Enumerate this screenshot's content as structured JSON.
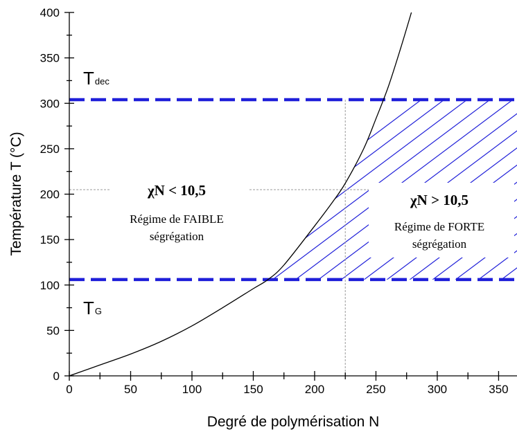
{
  "chart_data": {
    "type": "line",
    "title": "",
    "xlabel": "Degré de polymérisation N",
    "ylabel": "Température T (°C)",
    "xlim": [
      0,
      365
    ],
    "ylim": [
      0,
      400
    ],
    "x_ticks": [
      "0",
      "50",
      "100",
      "150",
      "200",
      "250",
      "300",
      "350"
    ],
    "y_ticks": [
      "0",
      "50",
      "100",
      "150",
      "200",
      "250",
      "300",
      "350",
      "400"
    ],
    "curve": {
      "x": [
        0,
        25,
        50,
        75,
        100,
        125,
        150,
        162,
        175,
        200,
        215,
        225,
        240,
        250,
        260,
        270,
        280
      ],
      "y": [
        0,
        12,
        24,
        38,
        55,
        75,
        96,
        106,
        122,
        165,
        192,
        212,
        250,
        283,
        318,
        360,
        405
      ]
    },
    "hlines": [
      {
        "label": "T_dec",
        "y": 304,
        "color": "#1f1fd9"
      },
      {
        "label": "T_G",
        "y": 106,
        "color": "#1f1fd9"
      }
    ],
    "reference_lines": {
      "x": 225,
      "y": 205
    },
    "annotations": {
      "tdec_main": "T",
      "tdec_sub": "dec",
      "tg_main": "T",
      "tg_sub": "G",
      "left_eq": "χN < 10,5",
      "left_line1": "Régime de FAIBLE",
      "left_line2": "ségrégation",
      "right_eq": "χN > 10,5",
      "right_line1": "Régime de FORTE",
      "right_line2": "ségrégation"
    },
    "colors": {
      "dashed": "#1f1fd9",
      "hatch": "#1f1fd9",
      "ref": "#999999",
      "curve": "#000000"
    }
  }
}
